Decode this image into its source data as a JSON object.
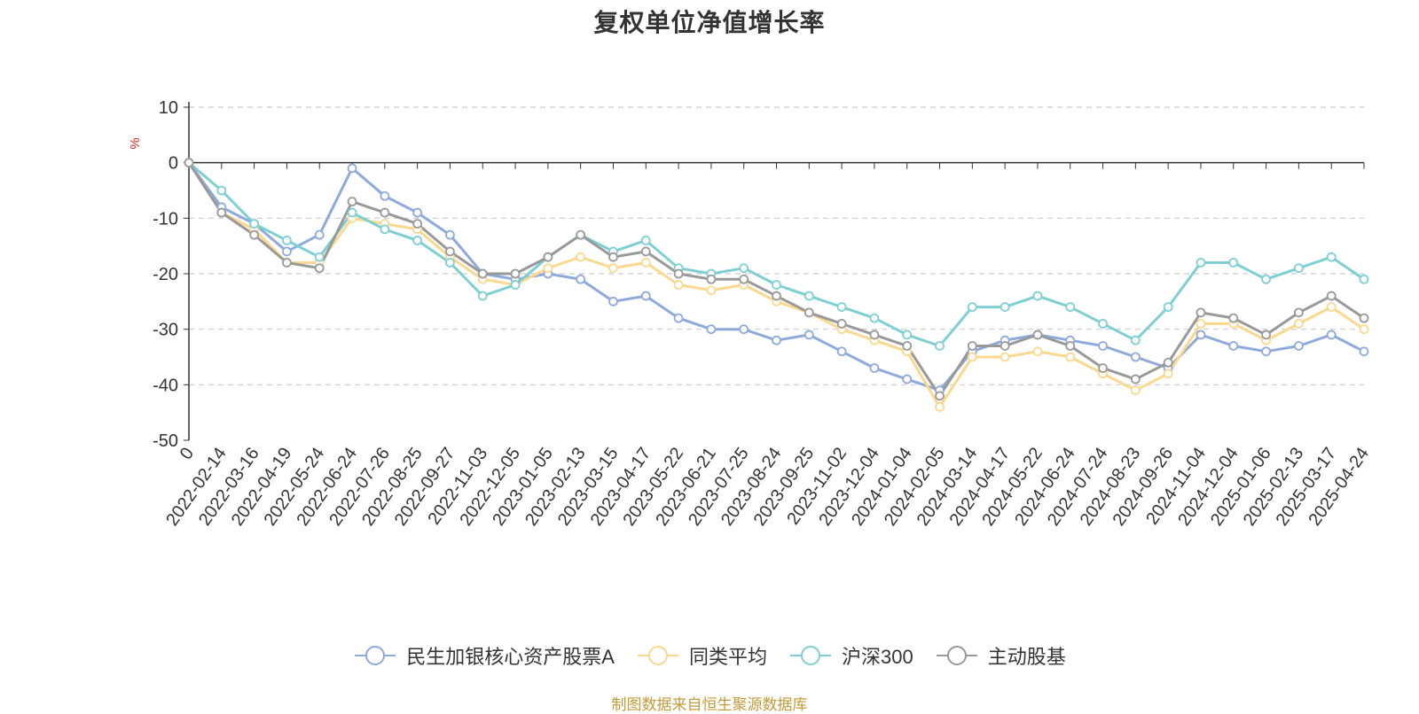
{
  "chart_data": {
    "type": "line",
    "title": "复权单位净值增长率",
    "ylabel": "%",
    "xlabel": "",
    "ylim": [
      -50,
      10
    ],
    "yticks": [
      10,
      0,
      -10,
      -20,
      -30,
      -40,
      -50
    ],
    "grid": true,
    "legend_position": "bottom",
    "x_tick_labels": [
      "0",
      "2022-02-14",
      "2022-03-16",
      "2022-04-19",
      "2022-05-24",
      "2022-06-24",
      "2022-07-26",
      "2022-08-25",
      "2022-09-27",
      "2022-11-03",
      "2022-12-05",
      "2023-01-05",
      "2023-02-13",
      "2023-03-15",
      "2023-04-17",
      "2023-05-22",
      "2023-06-21",
      "2023-07-25",
      "2023-08-24",
      "2023-09-25",
      "2023-11-02",
      "2023-12-04",
      "2024-01-04",
      "2024-02-05",
      "2024-03-14",
      "2024-04-17",
      "2024-05-22",
      "2024-06-24",
      "2024-07-24",
      "2024-08-23",
      "2024-09-26",
      "2024-11-04",
      "2024-12-04",
      "2025-01-06",
      "2025-02-13",
      "2025-03-17",
      "2025-04-24"
    ],
    "series": [
      {
        "name": "民生加银核心资产股票A",
        "color": "#8eaadc",
        "values": [
          0,
          -8,
          -11,
          -16,
          -13,
          -1,
          -6,
          -9,
          -13,
          -20,
          -21,
          -20,
          -21,
          -25,
          -24,
          -28,
          -30,
          -30,
          -32,
          -31,
          -34,
          -37,
          -39,
          -41,
          -34,
          -32,
          -31,
          -32,
          -33,
          -35,
          -37,
          -31,
          -33,
          -34,
          -33,
          -31,
          -34
        ]
      },
      {
        "name": "同类平均",
        "color": "#fbd88e",
        "values": [
          0,
          -9,
          -12,
          -18,
          -18,
          -10,
          -11,
          -12,
          -17,
          -21,
          -22,
          -19,
          -17,
          -19,
          -18,
          -22,
          -23,
          -22,
          -25,
          -27,
          -30,
          -32,
          -34,
          -44,
          -35,
          -35,
          -34,
          -35,
          -38,
          -41,
          -38,
          -29,
          -29,
          -32,
          -29,
          -26,
          -30
        ]
      },
      {
        "name": "沪深300",
        "color": "#7dcfd4",
        "values": [
          0,
          -5,
          -11,
          -14,
          -17,
          -9,
          -12,
          -14,
          -18,
          -24,
          -22,
          -17,
          -13,
          -16,
          -14,
          -19,
          -20,
          -19,
          -22,
          -24,
          -26,
          -28,
          -31,
          -33,
          -26,
          -26,
          -24,
          -26,
          -29,
          -32,
          -26,
          -18,
          -18,
          -21,
          -19,
          -17,
          -21
        ]
      },
      {
        "name": "主动股基",
        "color": "#999999",
        "values": [
          0,
          -9,
          -13,
          -18,
          -19,
          -7,
          -9,
          -11,
          -16,
          -20,
          -20,
          -17,
          -13,
          -17,
          -16,
          -20,
          -21,
          -21,
          -24,
          -27,
          -29,
          -31,
          -33,
          -42,
          -33,
          -33,
          -31,
          -33,
          -37,
          -39,
          -36,
          -27,
          -28,
          -31,
          -27,
          -24,
          -28
        ]
      }
    ]
  },
  "footer": {
    "source": "制图数据来自恒生聚源数据库"
  }
}
